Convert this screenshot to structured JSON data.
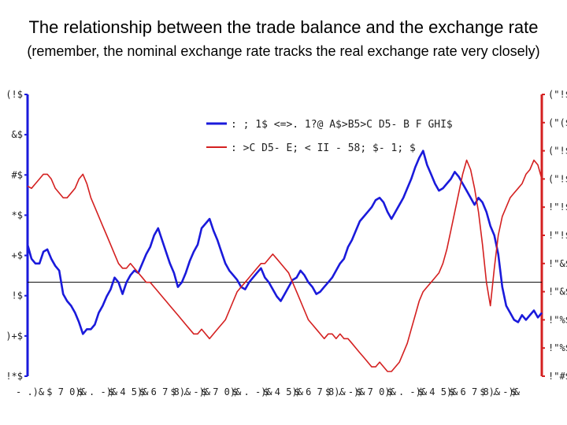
{
  "title": "The relationship between the trade balance and the exchange rate",
  "subtitle": "(remember, the nominal exchange rate tracks the real exchange rate very closely)",
  "chart_data": {
    "type": "line",
    "left_axis_ticks": [
      "(!$",
      "&$",
      "#$",
      "*$",
      "+$",
      "!$",
      ")+$",
      "!*$"
    ],
    "right_axis_ticks": [
      "(\"!$",
      "(\"($",
      "(\"!$",
      "(\"!$",
      "!\"!$",
      "!\"!$",
      "!\"&$",
      "!\"&$",
      "!\"%$",
      "!\"%$",
      "!\"#$"
    ],
    "x_ticks": [
      "- .)&",
      "$ 7 0)&",
      "$ . -)&",
      "$ 4 5)&",
      "$ 6 7 8)&",
      "$ . -)&",
      "$ 7 0)&",
      "$ . -)&",
      "$ 4 5)&",
      "$ 6 7 8)&",
      "$ . -)&",
      "$ 7 0)&",
      "$ . -)&",
      "$ 4 5)&",
      "$ 6 7 8)&",
      "$ . -)&",
      "$"
    ],
    "y_left_range": [
      -4,
      8
    ],
    "y_right_range": [
      0.9,
      1.5
    ],
    "zero_line_left": 0,
    "series": [
      {
        "name": ": ; 1$ <=>. 1?@ A$>B5>C D5- B F GHI$",
        "axis": "left",
        "color": "#1a1adb",
        "values": [
          1.6,
          1.0,
          0.8,
          0.8,
          1.3,
          1.4,
          1.0,
          0.7,
          0.5,
          -0.5,
          -0.8,
          -1.0,
          -1.3,
          -1.7,
          -2.2,
          -2.0,
          -2.0,
          -1.8,
          -1.3,
          -1.0,
          -0.6,
          -0.3,
          0.2,
          0.0,
          -0.5,
          0.0,
          0.3,
          0.5,
          0.4,
          0.8,
          1.2,
          1.5,
          2.0,
          2.3,
          1.8,
          1.3,
          0.8,
          0.4,
          -0.2,
          0.0,
          0.4,
          0.9,
          1.3,
          1.6,
          2.3,
          2.5,
          2.7,
          2.2,
          1.8,
          1.3,
          0.8,
          0.5,
          0.3,
          0.1,
          -0.2,
          -0.3,
          0.0,
          0.2,
          0.4,
          0.6,
          0.2,
          0.0,
          -0.3,
          -0.6,
          -0.8,
          -0.5,
          -0.2,
          0.1,
          0.2,
          0.5,
          0.3,
          0.0,
          -0.2,
          -0.5,
          -0.4,
          -0.2,
          0.0,
          0.2,
          0.5,
          0.8,
          1.0,
          1.5,
          1.8,
          2.2,
          2.6,
          2.8,
          3.0,
          3.2,
          3.5,
          3.6,
          3.4,
          3.0,
          2.7,
          3.0,
          3.3,
          3.6,
          4.0,
          4.4,
          4.9,
          5.3,
          5.6,
          5.0,
          4.6,
          4.2,
          3.9,
          4.0,
          4.2,
          4.4,
          4.7,
          4.5,
          4.2,
          3.9,
          3.6,
          3.3,
          3.6,
          3.4,
          3.0,
          2.4,
          2.0,
          1.2,
          -0.2,
          -1.0,
          -1.3,
          -1.6,
          -1.7,
          -1.4,
          -1.6,
          -1.4,
          -1.2,
          -1.5,
          -1.3
        ]
      },
      {
        "name": ": >C D5- E; < II - 58; $- 1; $",
        "axis": "right",
        "color": "#d42020",
        "values": [
          1.305,
          1.3,
          1.31,
          1.32,
          1.33,
          1.33,
          1.32,
          1.3,
          1.29,
          1.28,
          1.28,
          1.29,
          1.3,
          1.32,
          1.33,
          1.31,
          1.28,
          1.26,
          1.24,
          1.22,
          1.2,
          1.18,
          1.16,
          1.14,
          1.13,
          1.13,
          1.14,
          1.13,
          1.12,
          1.11,
          1.1,
          1.1,
          1.09,
          1.08,
          1.07,
          1.06,
          1.05,
          1.04,
          1.03,
          1.02,
          1.01,
          1.0,
          0.99,
          0.99,
          1.0,
          0.99,
          0.98,
          0.99,
          1.0,
          1.01,
          1.02,
          1.04,
          1.06,
          1.08,
          1.09,
          1.1,
          1.11,
          1.12,
          1.13,
          1.14,
          1.14,
          1.15,
          1.16,
          1.15,
          1.14,
          1.13,
          1.12,
          1.1,
          1.08,
          1.06,
          1.04,
          1.02,
          1.01,
          1.0,
          0.99,
          0.98,
          0.99,
          0.99,
          0.98,
          0.99,
          0.98,
          0.98,
          0.97,
          0.96,
          0.95,
          0.94,
          0.93,
          0.92,
          0.92,
          0.93,
          0.92,
          0.91,
          0.91,
          0.92,
          0.93,
          0.95,
          0.97,
          1.0,
          1.03,
          1.06,
          1.08,
          1.09,
          1.1,
          1.11,
          1.12,
          1.14,
          1.17,
          1.21,
          1.25,
          1.29,
          1.33,
          1.36,
          1.34,
          1.3,
          1.25,
          1.18,
          1.1,
          1.05,
          1.13,
          1.2,
          1.24,
          1.26,
          1.28,
          1.29,
          1.3,
          1.31,
          1.33,
          1.34,
          1.36,
          1.35,
          1.32
        ]
      }
    ]
  }
}
